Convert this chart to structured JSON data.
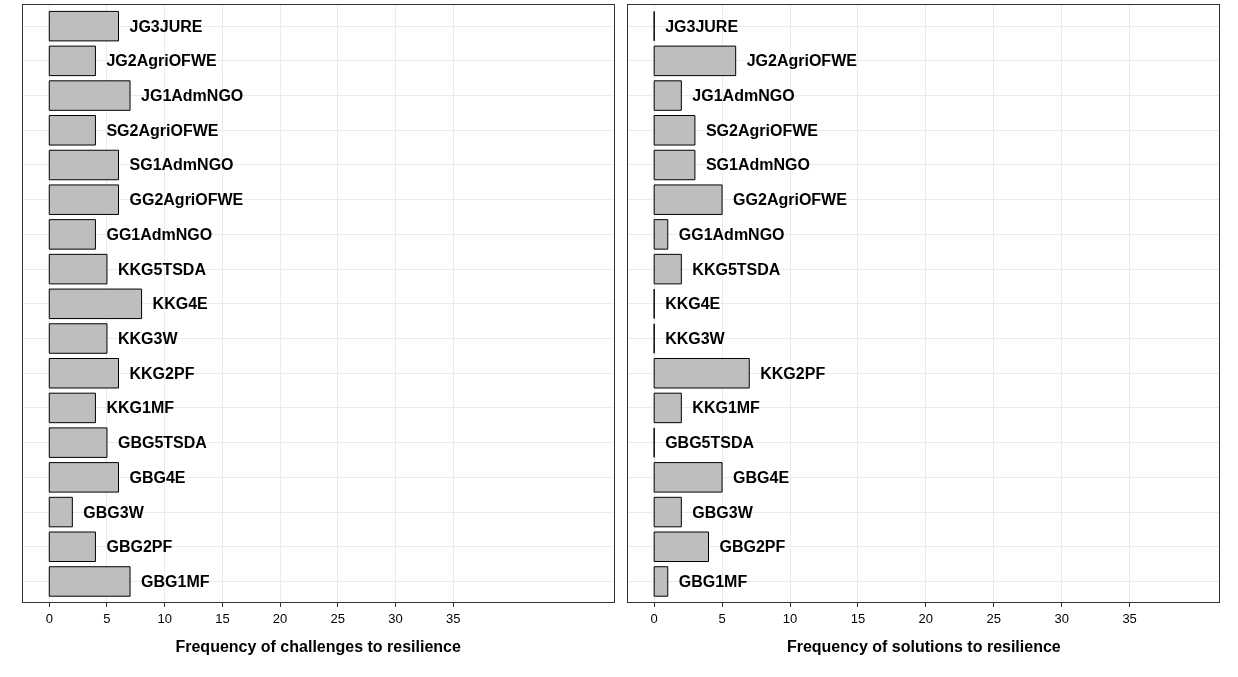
{
  "chart_data": [
    {
      "type": "bar",
      "orientation": "horizontal",
      "xlabel": "Frequency of challenges to resilience",
      "categories": [
        "JG3JURE",
        "JG2AgriOFWE",
        "JG1AdmNGO",
        "SG2AgriOFWE",
        "SG1AdmNGO",
        "GG2AgriOFWE",
        "GG1AdmNGO",
        "KKG5TSDA",
        "KKG4E",
        "KKG3W",
        "KKG2PF",
        "KKG1MF",
        "GBG5TSDA",
        "GBG4E",
        "GBG3W",
        "GBG2PF",
        "GBG1MF"
      ],
      "values": [
        6,
        4,
        7,
        4,
        6,
        6,
        4,
        5,
        8,
        5,
        6,
        4,
        5,
        6,
        2,
        4,
        7
      ],
      "color": "#bebebe",
      "xlim": [
        -2.3,
        48.9
      ],
      "xticks": [
        0,
        5,
        10,
        15,
        20,
        25,
        30,
        35
      ],
      "grid": true,
      "tick_labels": "x"
    },
    {
      "type": "bar",
      "orientation": "horizontal",
      "xlabel": "Frequency of solutions to resilience",
      "categories": [
        "JG3JURE",
        "JG2AgriOFWE",
        "JG1AdmNGO",
        "SG2AgriOFWE",
        "SG1AdmNGO",
        "GG2AgriOFWE",
        "GG1AdmNGO",
        "KKG5TSDA",
        "KKG4E",
        "KKG3W",
        "KKG2PF",
        "KKG1MF",
        "GBG5TSDA",
        "GBG4E",
        "GBG3W",
        "GBG2PF",
        "GBG1MF"
      ],
      "values": [
        0,
        6,
        2,
        3,
        3,
        5,
        1,
        2,
        0,
        0,
        7,
        2,
        0,
        5,
        2,
        4,
        1
      ],
      "colors": [
        "#000000",
        "#bebebe",
        "#bebebe",
        "#bebebe",
        "#bebebe",
        "#bebebe",
        "#bebebe",
        "#bebebe",
        "#000000",
        "#000000",
        "#bebebe",
        "#bebebe",
        "#000000",
        "#bebebe",
        "#bebebe",
        "#bebebe",
        "#bebebe"
      ],
      "xlim": [
        -1.9,
        41.6
      ],
      "xticks": [
        0,
        5,
        10,
        15,
        20,
        25,
        30,
        35
      ],
      "grid": true,
      "tick_labels": "x"
    }
  ]
}
